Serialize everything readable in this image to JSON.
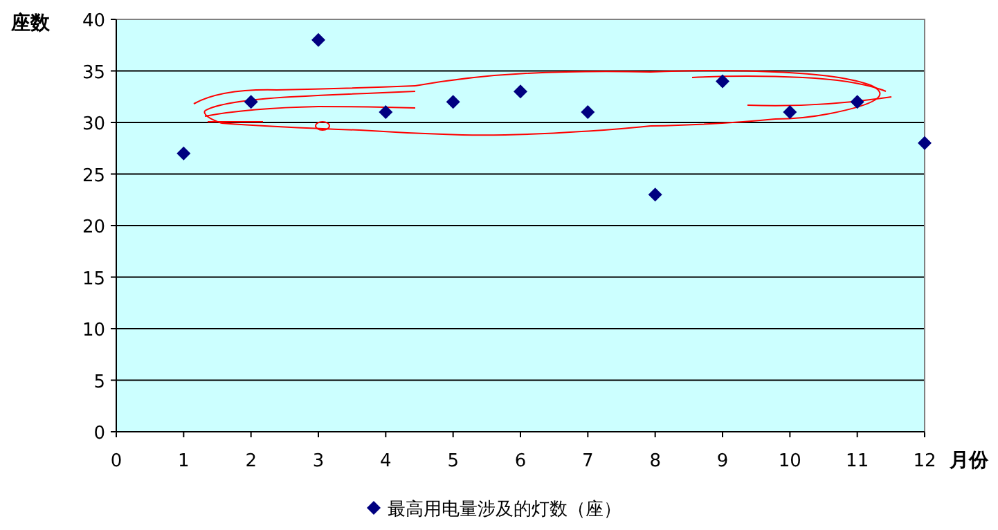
{
  "chart_data": {
    "type": "scatter",
    "xlabel": "月份",
    "ylabel": "座数",
    "x": [
      1,
      2,
      3,
      4,
      5,
      6,
      7,
      8,
      9,
      10,
      11,
      12
    ],
    "series": [
      {
        "name": "最高用电量涉及的灯数（座）",
        "color": "#000080",
        "values": [
          27,
          32,
          38,
          31,
          32,
          33,
          31,
          23,
          34,
          31,
          32,
          28
        ]
      }
    ],
    "xlim": [
      0,
      12
    ],
    "ylim": [
      0,
      40
    ],
    "xticks": [
      0,
      1,
      2,
      3,
      4,
      5,
      6,
      7,
      8,
      9,
      10,
      11,
      12
    ],
    "yticks": [
      0,
      5,
      10,
      15,
      20,
      25,
      30,
      35,
      40
    ],
    "grid": "y",
    "legend": "bottom",
    "marker": "diamond"
  }
}
